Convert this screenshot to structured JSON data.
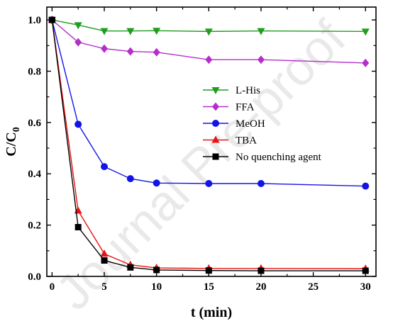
{
  "chart_data": {
    "type": "line",
    "title": "",
    "xlabel": "t (min)",
    "ylabel": "C/C0",
    "ylabel_main": "C/C",
    "ylabel_sub": "0",
    "xlim": [
      -0.5,
      31
    ],
    "ylim": [
      0,
      1.05
    ],
    "xticks": [
      0,
      5,
      10,
      15,
      20,
      25,
      30
    ],
    "xtick_labels": [
      "0",
      "5",
      "10",
      "15",
      "20",
      "25",
      "30"
    ],
    "yticks": [
      0.0,
      0.2,
      0.4,
      0.6,
      0.8,
      1.0
    ],
    "ytick_labels": [
      "0.0",
      "0.2",
      "0.4",
      "0.6",
      "0.8",
      "1.0"
    ],
    "grid": false,
    "legend_position": "center-right",
    "series": [
      {
        "name": "L-His",
        "color": "#1e9e1e",
        "marker": "triangle-down",
        "x": [
          0,
          2.5,
          5,
          7.5,
          10,
          15,
          20,
          30
        ],
        "y": [
          1.0,
          0.98,
          0.957,
          0.957,
          0.958,
          0.955,
          0.957,
          0.955
        ]
      },
      {
        "name": "FFA",
        "color": "#b52ecb",
        "marker": "diamond",
        "x": [
          0,
          2.5,
          5,
          7.5,
          10,
          15,
          20,
          30
        ],
        "y": [
          1.0,
          0.913,
          0.888,
          0.877,
          0.874,
          0.845,
          0.845,
          0.832
        ]
      },
      {
        "name": "MeOH",
        "color": "#1414e6",
        "marker": "circle",
        "x": [
          0,
          2.5,
          5,
          7.5,
          10,
          15,
          20,
          30
        ],
        "y": [
          1.0,
          0.593,
          0.428,
          0.381,
          0.364,
          0.362,
          0.362,
          0.352
        ]
      },
      {
        "name": "TBA",
        "color": "#e61414",
        "marker": "triangle-up",
        "x": [
          0,
          2.5,
          5,
          7.5,
          10,
          15,
          20,
          30
        ],
        "y": [
          1.0,
          0.256,
          0.088,
          0.045,
          0.033,
          0.031,
          0.031,
          0.03
        ]
      },
      {
        "name": "No quenching agent",
        "color": "#000000",
        "marker": "square",
        "x": [
          0,
          2.5,
          5,
          7.5,
          10,
          15,
          20,
          30
        ],
        "y": [
          1.0,
          0.192,
          0.062,
          0.035,
          0.025,
          0.023,
          0.022,
          0.022
        ]
      }
    ]
  },
  "watermark": "Journal Pre-proof"
}
